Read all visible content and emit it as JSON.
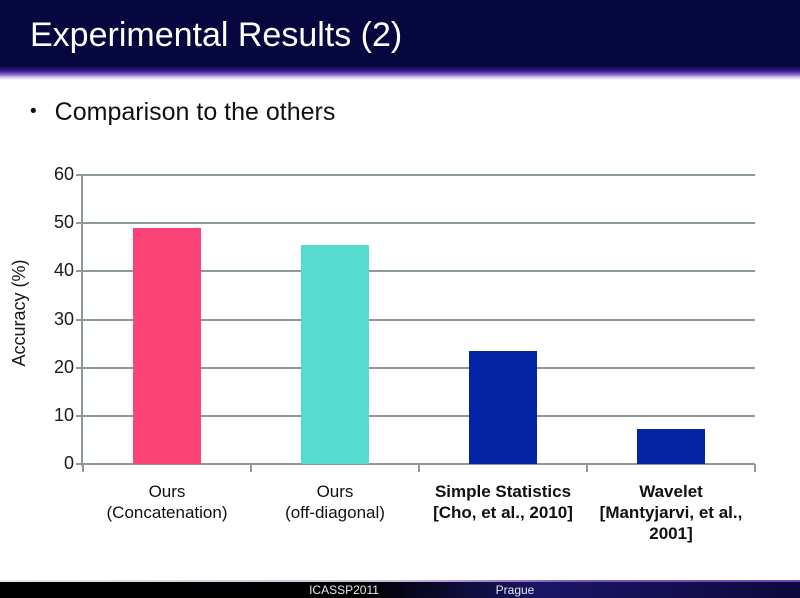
{
  "header": {
    "title": "Experimental Results (2)",
    "bg_color": "#070740",
    "text_color": "#ffffff"
  },
  "bullet": {
    "marker": "•",
    "text": "Comparison to the others"
  },
  "chart_data": {
    "type": "bar",
    "title": "",
    "xlabel": "",
    "ylabel": "Accuracy (%)",
    "ylim": [
      0,
      60
    ],
    "yticks": [
      0,
      10,
      20,
      30,
      40,
      50,
      60
    ],
    "grid": true,
    "legend": "none",
    "categories": [
      {
        "lines": [
          "Ours",
          "(Concatenation)"
        ],
        "bold": false
      },
      {
        "lines": [
          "Ours",
          "(off-diagonal)"
        ],
        "bold": false
      },
      {
        "lines": [
          "Simple Statistics",
          "[Cho, et al., 2010]"
        ],
        "bold": true
      },
      {
        "lines": [
          "Wavelet",
          "[Mantyjarvi, et al.,",
          "2001]"
        ],
        "bold": true
      }
    ],
    "values": [
      49,
      45.5,
      23.5,
      7.2
    ],
    "bar_colors": [
      "#fc4377",
      "#57dbd0",
      "#0523a5",
      "#0523a5"
    ],
    "gridline_color": "#8e9a9a",
    "axis_color": "#8e9a9a"
  },
  "footer": {
    "left_text": "ICASSP2011",
    "right_text": "Prague",
    "bg_left": "#000000",
    "bg_right": "#0e083c",
    "accent_line": "#7a5ac8"
  }
}
